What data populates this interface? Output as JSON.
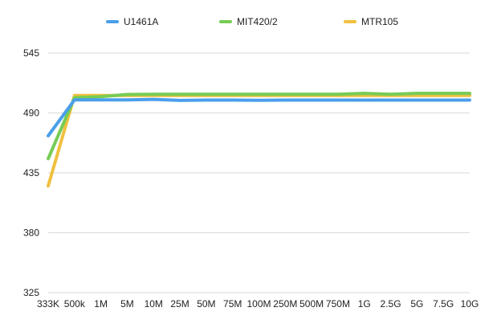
{
  "chart_data": {
    "type": "line",
    "categories": [
      "333K",
      "500k",
      "1M",
      "5M",
      "10M",
      "25M",
      "50M",
      "75M",
      "100M",
      "250M",
      "500M",
      "750M",
      "1G",
      "2.5G",
      "5G",
      "7.5G",
      "10G"
    ],
    "series": [
      {
        "name": "U1461A",
        "color": "#4a9fea",
        "values": [
          469,
          502,
          502,
          502,
          502.5,
          501.5,
          501.8,
          501.8,
          501.6,
          501.8,
          501.8,
          501.8,
          501.8,
          501.8,
          501.8,
          501.8,
          501.8
        ]
      },
      {
        "name": "MIT420/2",
        "color": "#77cc55",
        "values": [
          448,
          504,
          505,
          507,
          507.2,
          507.2,
          507.2,
          507.2,
          507.2,
          507.2,
          507.2,
          507.2,
          508,
          507.2,
          508,
          508,
          508
        ]
      },
      {
        "name": "MTR105",
        "color": "#f0c040",
        "values": [
          423,
          506,
          506,
          506,
          506,
          506,
          506,
          506,
          506,
          506,
          506,
          506,
          506,
          506,
          506,
          506,
          506
        ]
      }
    ],
    "yticks": [
      "545",
      "490",
      "435",
      "380",
      "325"
    ],
    "ylim": [
      325,
      545
    ],
    "legend_position": "top-center",
    "grid": true
  }
}
